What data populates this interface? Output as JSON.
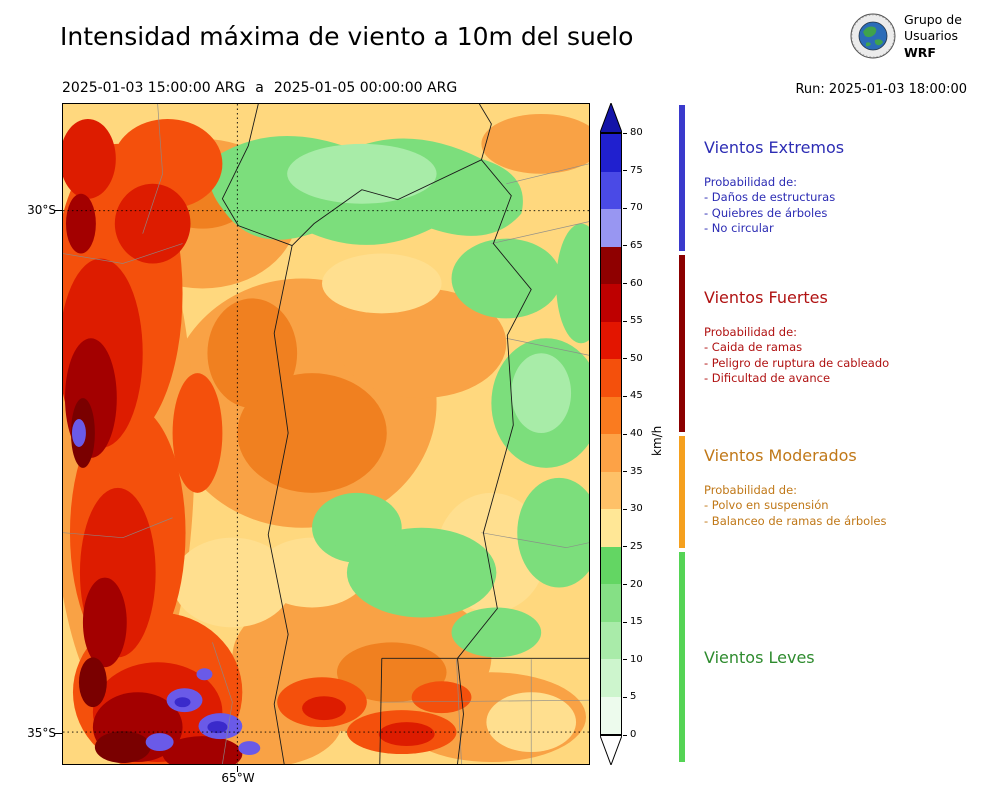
{
  "header": {
    "title": "Intensidad máxima de viento a 10m del suelo",
    "period_start": "2025-01-03 15:00:00 ARG",
    "period_sep": "a",
    "period_end": "2025-01-05 00:00:00 ARG",
    "run_label": "Run: 2025-01-03 18:00:00",
    "logo": {
      "line1": "Grupo de",
      "line2": "Usuarios",
      "line3": "WRF"
    }
  },
  "map": {
    "lat_top_label": "30°S",
    "lat_bottom_label": "35°S",
    "lon_label": "65°W"
  },
  "colorbar": {
    "unit": "km/h",
    "ticks": [
      0,
      5,
      10,
      15,
      20,
      25,
      30,
      35,
      40,
      45,
      50,
      55,
      60,
      65,
      70,
      75,
      80
    ],
    "over_color": "#1414A8",
    "under_color": "#FFFFFF",
    "segments": [
      {
        "from": 75,
        "to": 80,
        "color": "#2020CF"
      },
      {
        "from": 70,
        "to": 75,
        "color": "#4A4AE6"
      },
      {
        "from": 65,
        "to": 70,
        "color": "#9896F2"
      },
      {
        "from": 60,
        "to": 65,
        "color": "#8F0000"
      },
      {
        "from": 55,
        "to": 60,
        "color": "#BE0000"
      },
      {
        "from": 50,
        "to": 55,
        "color": "#E31500"
      },
      {
        "from": 45,
        "to": 50,
        "color": "#F4500C"
      },
      {
        "from": 40,
        "to": 45,
        "color": "#FA7B1F"
      },
      {
        "from": 35,
        "to": 40,
        "color": "#FDA246"
      },
      {
        "from": 30,
        "to": 35,
        "color": "#FEC168"
      },
      {
        "from": 25,
        "to": 30,
        "color": "#FFE796"
      },
      {
        "from": 20,
        "to": 25,
        "color": "#63D663"
      },
      {
        "from": 15,
        "to": 20,
        "color": "#85E085"
      },
      {
        "from": 10,
        "to": 15,
        "color": "#A9EBA9"
      },
      {
        "from": 5,
        "to": 10,
        "color": "#CDF5CD"
      },
      {
        "from": 0,
        "to": 5,
        "color": "#EDFBED"
      }
    ]
  },
  "legend": {
    "sections": [
      {
        "title": "Vientos Extremos",
        "color": "#2C2CB4",
        "bar_color": "#3A3ACC",
        "subtitle": "Probabilidad de:",
        "items": [
          "- Daños de estructuras",
          "- Quiebres de árboles",
          "- No circular"
        ]
      },
      {
        "title": "Vientos Fuertes",
        "color": "#B01212",
        "bar_color": "#8B0000",
        "subtitle": "Probabilidad de:",
        "items": [
          "- Caida de ramas",
          "- Peligro de ruptura de cableado",
          "- Dificultad de avance"
        ]
      },
      {
        "title": "Vientos Moderados",
        "color": "#C07818",
        "bar_color": "#F5A01E",
        "subtitle": "Probabilidad de:",
        "items": [
          "- Polvo en suspensión",
          "- Balanceo de ramas de árboles"
        ]
      },
      {
        "title": "Vientos Leves",
        "color": "#2E8B2E",
        "bar_color": "#55D455",
        "subtitle": "",
        "items": []
      }
    ]
  }
}
